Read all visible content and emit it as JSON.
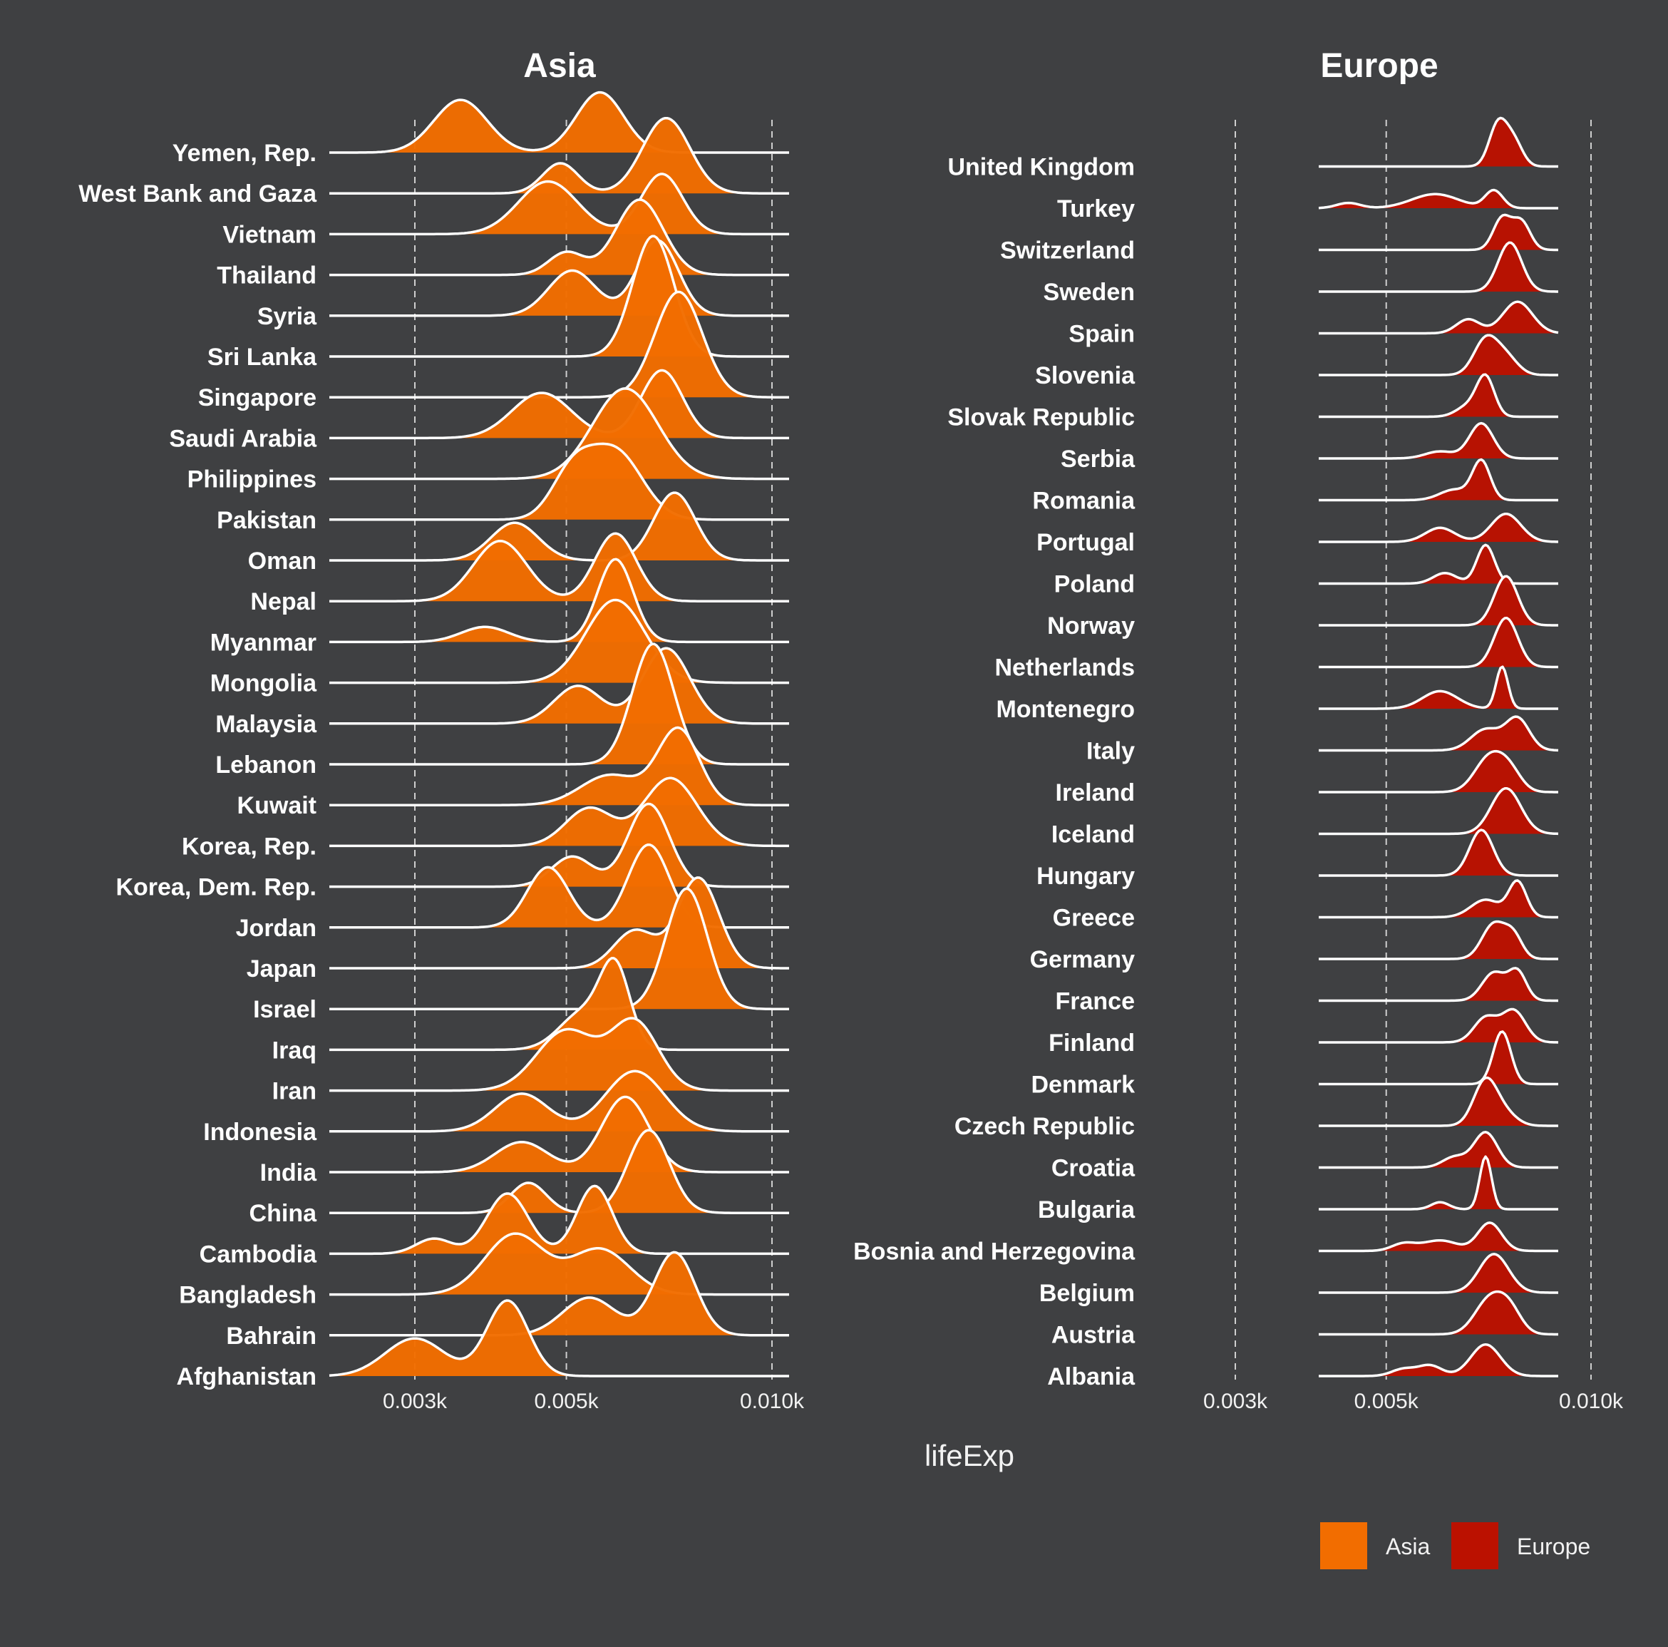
{
  "chart_data": {
    "type": "ridgeline",
    "xlabel": "lifeExp",
    "x_scale": "log",
    "x_ticks": [
      {
        "value": 3,
        "label": "0.003k"
      },
      {
        "value": 5,
        "label": "0.005k"
      },
      {
        "value": 10,
        "label": "0.010k"
      }
    ],
    "panels": [
      {
        "title": "Asia",
        "color": "#f26d00",
        "rows": [
          {
            "country": "Yemen, Rep.",
            "peaks": [
              [
                3.5,
                0.7,
                0.09
              ],
              [
                5.6,
                0.8,
                0.08
              ]
            ]
          },
          {
            "country": "West Bank and Gaza",
            "peaks": [
              [
                4.9,
                0.4,
                0.06
              ],
              [
                7.0,
                1.0,
                0.08
              ]
            ]
          },
          {
            "country": "Vietnam",
            "peaks": [
              [
                4.7,
                0.7,
                0.1
              ],
              [
                6.9,
                0.8,
                0.07
              ]
            ]
          },
          {
            "country": "Thailand",
            "peaks": [
              [
                5.0,
                0.3,
                0.06
              ],
              [
                6.4,
                1.0,
                0.08
              ]
            ]
          },
          {
            "country": "Syria",
            "peaks": [
              [
                5.1,
                0.6,
                0.08
              ],
              [
                6.8,
                1.0,
                0.07
              ]
            ]
          },
          {
            "country": "Sri Lanka",
            "peaks": [
              [
                6.7,
                1.6,
                0.07
              ]
            ]
          },
          {
            "country": "Singapore",
            "peaks": [
              [
                7.3,
                1.4,
                0.08
              ]
            ]
          },
          {
            "country": "Saudi Arabia",
            "peaks": [
              [
                4.6,
                0.6,
                0.1
              ],
              [
                6.9,
                0.9,
                0.07
              ]
            ]
          },
          {
            "country": "Philippines",
            "peaks": [
              [
                6.1,
                1.2,
                0.11
              ]
            ]
          },
          {
            "country": "Pakistan",
            "peaks": [
              [
                5.1,
                0.6,
                0.07
              ],
              [
                5.9,
                0.9,
                0.09
              ]
            ]
          },
          {
            "country": "Oman",
            "peaks": [
              [
                4.2,
                0.5,
                0.08
              ],
              [
                7.2,
                0.9,
                0.07
              ]
            ]
          },
          {
            "country": "Nepal",
            "peaks": [
              [
                4.0,
                0.8,
                0.09
              ],
              [
                5.9,
                0.9,
                0.07
              ]
            ]
          },
          {
            "country": "Myanmar",
            "peaks": [
              [
                3.8,
                0.2,
                0.08
              ],
              [
                5.9,
                1.1,
                0.06
              ]
            ]
          },
          {
            "country": "Mongolia",
            "peaks": [
              [
                5.9,
                1.1,
                0.1
              ]
            ]
          },
          {
            "country": "Malaysia",
            "peaks": [
              [
                5.2,
                0.5,
                0.08
              ],
              [
                7.0,
                1.0,
                0.08
              ]
            ]
          },
          {
            "country": "Lebanon",
            "peaks": [
              [
                6.7,
                1.6,
                0.07
              ]
            ]
          },
          {
            "country": "Kuwait",
            "peaks": [
              [
                5.8,
                0.4,
                0.1
              ],
              [
                7.3,
                1.0,
                0.07
              ]
            ]
          },
          {
            "country": "Korea, Rep.",
            "peaks": [
              [
                5.4,
                0.5,
                0.08
              ],
              [
                7.1,
                0.9,
                0.09
              ]
            ]
          },
          {
            "country": "Korea, Dem. Rep.",
            "peaks": [
              [
                5.1,
                0.4,
                0.07
              ],
              [
                6.6,
                1.1,
                0.07
              ]
            ]
          },
          {
            "country": "Jordan",
            "peaks": [
              [
                4.7,
                0.8,
                0.07
              ],
              [
                6.6,
                1.1,
                0.07
              ]
            ]
          },
          {
            "country": "Japan",
            "peaks": [
              [
                6.3,
                0.5,
                0.07
              ],
              [
                7.8,
                1.2,
                0.07
              ]
            ]
          },
          {
            "country": "Israel",
            "peaks": [
              [
                7.5,
                1.6,
                0.07
              ]
            ]
          },
          {
            "country": "Iraq",
            "peaks": [
              [
                5.3,
                0.5,
                0.08
              ],
              [
                5.9,
                1.0,
                0.05
              ]
            ]
          },
          {
            "country": "Iran",
            "peaks": [
              [
                5.0,
                0.8,
                0.1
              ],
              [
                6.3,
                0.9,
                0.08
              ]
            ]
          },
          {
            "country": "Indonesia",
            "peaks": [
              [
                4.3,
                0.5,
                0.09
              ],
              [
                6.3,
                0.8,
                0.1
              ]
            ]
          },
          {
            "country": "India",
            "peaks": [
              [
                4.3,
                0.4,
                0.09
              ],
              [
                6.1,
                1.0,
                0.08
              ]
            ]
          },
          {
            "country": "China",
            "peaks": [
              [
                4.4,
                0.4,
                0.06
              ],
              [
                6.6,
                1.1,
                0.07
              ]
            ]
          },
          {
            "country": "Cambodia",
            "peaks": [
              [
                3.2,
                0.2,
                0.06
              ],
              [
                4.1,
                0.8,
                0.07
              ],
              [
                5.5,
                0.9,
                0.06
              ]
            ]
          },
          {
            "country": "Bangladesh",
            "peaks": [
              [
                4.2,
                0.8,
                0.1
              ],
              [
                5.6,
                0.6,
                0.1
              ]
            ]
          },
          {
            "country": "Bahrain",
            "peaks": [
              [
                5.4,
                0.5,
                0.09
              ],
              [
                7.2,
                1.1,
                0.07
              ]
            ]
          },
          {
            "country": "Afghanistan",
            "peaks": [
              [
                3.0,
                0.5,
                0.1
              ],
              [
                4.1,
                1.0,
                0.07
              ]
            ]
          }
        ]
      },
      {
        "title": "Europe",
        "color": "#bb1100",
        "rows": [
          {
            "country": "United Kingdom",
            "peaks": [
              [
                7.3,
                1.2,
                0.03
              ],
              [
                7.7,
                0.7,
                0.03
              ]
            ]
          },
          {
            "country": "Turkey",
            "peaks": [
              [
                4.4,
                0.15,
                0.04
              ],
              [
                5.9,
                0.4,
                0.08
              ],
              [
                7.2,
                0.5,
                0.03
              ]
            ]
          },
          {
            "country": "Switzerland",
            "peaks": [
              [
                7.4,
                0.9,
                0.03
              ],
              [
                7.9,
                0.8,
                0.03
              ]
            ]
          },
          {
            "country": "Sweden",
            "peaks": [
              [
                7.6,
                1.4,
                0.04
              ]
            ]
          },
          {
            "country": "Spain",
            "peaks": [
              [
                6.6,
                0.4,
                0.04
              ],
              [
                7.8,
                0.9,
                0.05
              ]
            ]
          },
          {
            "country": "Slovenia",
            "peaks": [
              [
                7.0,
                1.0,
                0.04
              ],
              [
                7.5,
                0.5,
                0.04
              ]
            ]
          },
          {
            "country": "Slovak Republic",
            "peaks": [
              [
                6.6,
                0.3,
                0.04
              ],
              [
                7.0,
                1.1,
                0.03
              ]
            ]
          },
          {
            "country": "Serbia",
            "peaks": [
              [
                6.0,
                0.2,
                0.05
              ],
              [
                6.9,
                1.0,
                0.04
              ]
            ]
          },
          {
            "country": "Romania",
            "peaks": [
              [
                6.3,
                0.3,
                0.05
              ],
              [
                6.9,
                1.1,
                0.03
              ]
            ]
          },
          {
            "country": "Portugal",
            "peaks": [
              [
                6.0,
                0.4,
                0.05
              ],
              [
                7.5,
                0.8,
                0.05
              ]
            ]
          },
          {
            "country": "Poland",
            "peaks": [
              [
                6.1,
                0.3,
                0.04
              ],
              [
                7.0,
                1.1,
                0.03
              ]
            ]
          },
          {
            "country": "Norway",
            "peaks": [
              [
                7.5,
                1.4,
                0.04
              ]
            ]
          },
          {
            "country": "Netherlands",
            "peaks": [
              [
                7.5,
                1.4,
                0.04
              ]
            ]
          },
          {
            "country": "Montenegro",
            "peaks": [
              [
                6.0,
                0.5,
                0.06
              ],
              [
                7.4,
                1.2,
                0.02
              ]
            ]
          },
          {
            "country": "Italy",
            "peaks": [
              [
                7.0,
                0.6,
                0.05
              ],
              [
                7.8,
                0.9,
                0.04
              ]
            ]
          },
          {
            "country": "Ireland",
            "peaks": [
              [
                7.1,
                1.0,
                0.05
              ],
              [
                7.6,
                0.5,
                0.04
              ]
            ]
          },
          {
            "country": "Iceland",
            "peaks": [
              [
                7.5,
                1.3,
                0.05
              ]
            ]
          },
          {
            "country": "Hungary",
            "peaks": [
              [
                6.9,
                1.3,
                0.04
              ]
            ]
          },
          {
            "country": "Greece",
            "peaks": [
              [
                7.0,
                0.5,
                0.05
              ],
              [
                7.8,
                1.0,
                0.03
              ]
            ]
          },
          {
            "country": "Germany",
            "peaks": [
              [
                7.2,
                1.0,
                0.04
              ],
              [
                7.7,
                0.6,
                0.03
              ]
            ]
          },
          {
            "country": "France",
            "peaks": [
              [
                7.2,
                0.8,
                0.04
              ],
              [
                7.8,
                0.8,
                0.03
              ]
            ]
          },
          {
            "country": "Finland",
            "peaks": [
              [
                7.0,
                0.7,
                0.04
              ],
              [
                7.7,
                0.9,
                0.04
              ]
            ]
          },
          {
            "country": "Denmark",
            "peaks": [
              [
                7.4,
                1.5,
                0.03
              ]
            ]
          },
          {
            "country": "Czech Republic",
            "peaks": [
              [
                7.0,
                1.3,
                0.04
              ],
              [
                7.5,
                0.3,
                0.04
              ]
            ]
          },
          {
            "country": "Croatia",
            "peaks": [
              [
                6.3,
                0.3,
                0.04
              ],
              [
                7.0,
                1.0,
                0.04
              ]
            ]
          },
          {
            "country": "Bulgaria",
            "peaks": [
              [
                6.0,
                0.2,
                0.03
              ],
              [
                7.0,
                1.5,
                0.02
              ]
            ]
          },
          {
            "country": "Bosnia and Herzegovina",
            "peaks": [
              [
                5.3,
                0.2,
                0.04
              ],
              [
                6.0,
                0.3,
                0.06
              ],
              [
                7.1,
                0.8,
                0.04
              ]
            ]
          },
          {
            "country": "Belgium",
            "peaks": [
              [
                7.2,
                1.1,
                0.05
              ]
            ]
          },
          {
            "country": "Austria",
            "peaks": [
              [
                7.1,
                1.0,
                0.05
              ],
              [
                7.6,
                0.6,
                0.04
              ]
            ]
          },
          {
            "country": "Albania",
            "peaks": [
              [
                5.3,
                0.2,
                0.04
              ],
              [
                5.8,
                0.3,
                0.04
              ],
              [
                7.0,
                0.9,
                0.05
              ]
            ]
          }
        ]
      }
    ],
    "legend": {
      "position": "bottom-right",
      "entries": [
        {
          "label": "Asia",
          "color": "#f26d00"
        },
        {
          "label": "Europe",
          "color": "#bb1100"
        }
      ]
    }
  }
}
